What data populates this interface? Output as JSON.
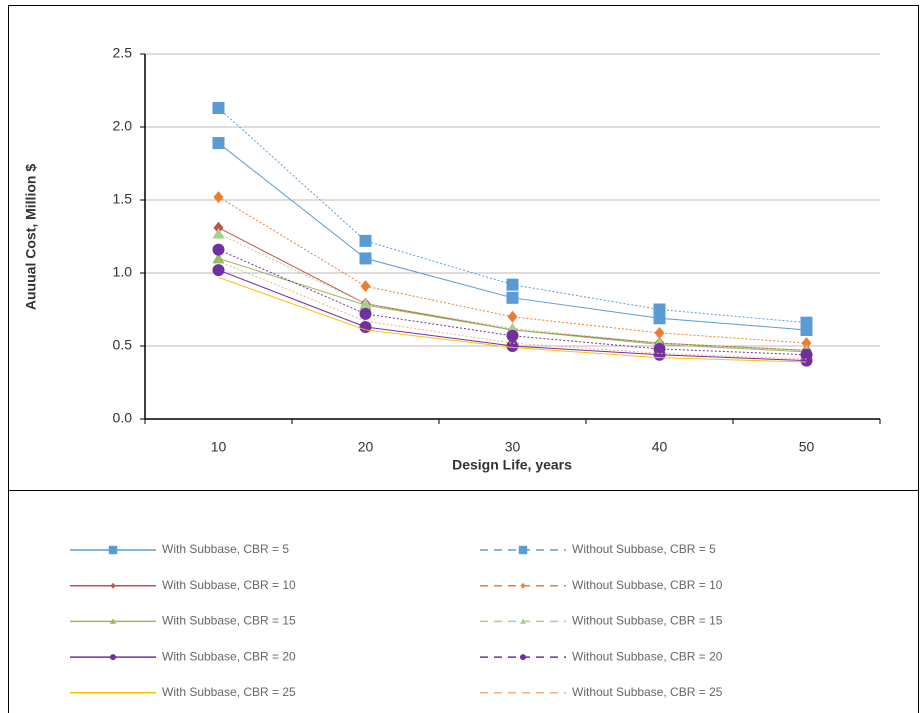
{
  "chart_data": {
    "type": "line",
    "x_label": "Design Life, years",
    "y_label": "Auuual Cost, Million $",
    "categories": [
      "10",
      "20",
      "30",
      "40",
      "50"
    ],
    "ylim": [
      0,
      2.5
    ],
    "yticks": [
      {
        "value": 0,
        "label": "0.0"
      },
      0.5,
      {
        "value": 1,
        "label": "1.0"
      },
      1.5,
      {
        "value": 2,
        "label": "2.0"
      },
      2.5
    ],
    "grid": true,
    "legend": "bottom",
    "series": [
      {
        "name": "With Subbase, CBR = 5",
        "color": "#5b9bd5",
        "marker": "square",
        "dashed": false,
        "values": [
          1.89,
          1.1,
          0.83,
          0.69,
          0.61
        ]
      },
      {
        "name": "Without Subbase, CBR = 5",
        "color": "#5b9bd5",
        "marker": "square",
        "dashed": true,
        "values": [
          2.13,
          1.22,
          0.92,
          0.75,
          0.66
        ]
      },
      {
        "name": "With Subbase, CBR = 10",
        "color": "#c0504d",
        "marker": "diamond",
        "dashed": false,
        "values": [
          1.31,
          0.79,
          0.61,
          0.52,
          0.47
        ]
      },
      {
        "name": "Without Subbase, CBR = 10",
        "color": "#ed7d31",
        "marker": "diamond",
        "dashed": true,
        "values": [
          1.52,
          0.91,
          0.7,
          0.59,
          0.52
        ]
      },
      {
        "name": "With Subbase, CBR = 15",
        "color": "#9bbb59",
        "marker": "triangle",
        "dashed": false,
        "values": [
          1.1,
          0.78,
          0.61,
          0.51,
          0.46
        ]
      },
      {
        "name": "Without Subbase, CBR = 15",
        "color": "#a9d18e",
        "marker": "triangle",
        "dashed": true,
        "values": [
          1.27,
          0.79,
          0.62,
          0.52,
          0.47
        ]
      },
      {
        "name": "With Subbase, CBR = 20",
        "color": "#7030a0",
        "marker": "circle",
        "dashed": false,
        "values": [
          1.02,
          0.63,
          0.5,
          0.44,
          0.4
        ]
      },
      {
        "name": "Without Subbase, CBR = 20",
        "color": "#7030a0",
        "marker": "circle",
        "dashed": true,
        "values": [
          1.16,
          0.72,
          0.57,
          0.48,
          0.44
        ]
      },
      {
        "name": "With Subbase, CBR = 25",
        "color": "#ffc000",
        "marker": "none",
        "dashed": false,
        "values": [
          0.97,
          0.61,
          0.49,
          0.42,
          0.39
        ]
      },
      {
        "name": "Without Subbase, CBR = 25",
        "color": "#f4b183",
        "marker": "none",
        "dashed": true,
        "values": [
          1.08,
          0.67,
          0.52,
          0.45,
          0.41
        ]
      }
    ]
  }
}
